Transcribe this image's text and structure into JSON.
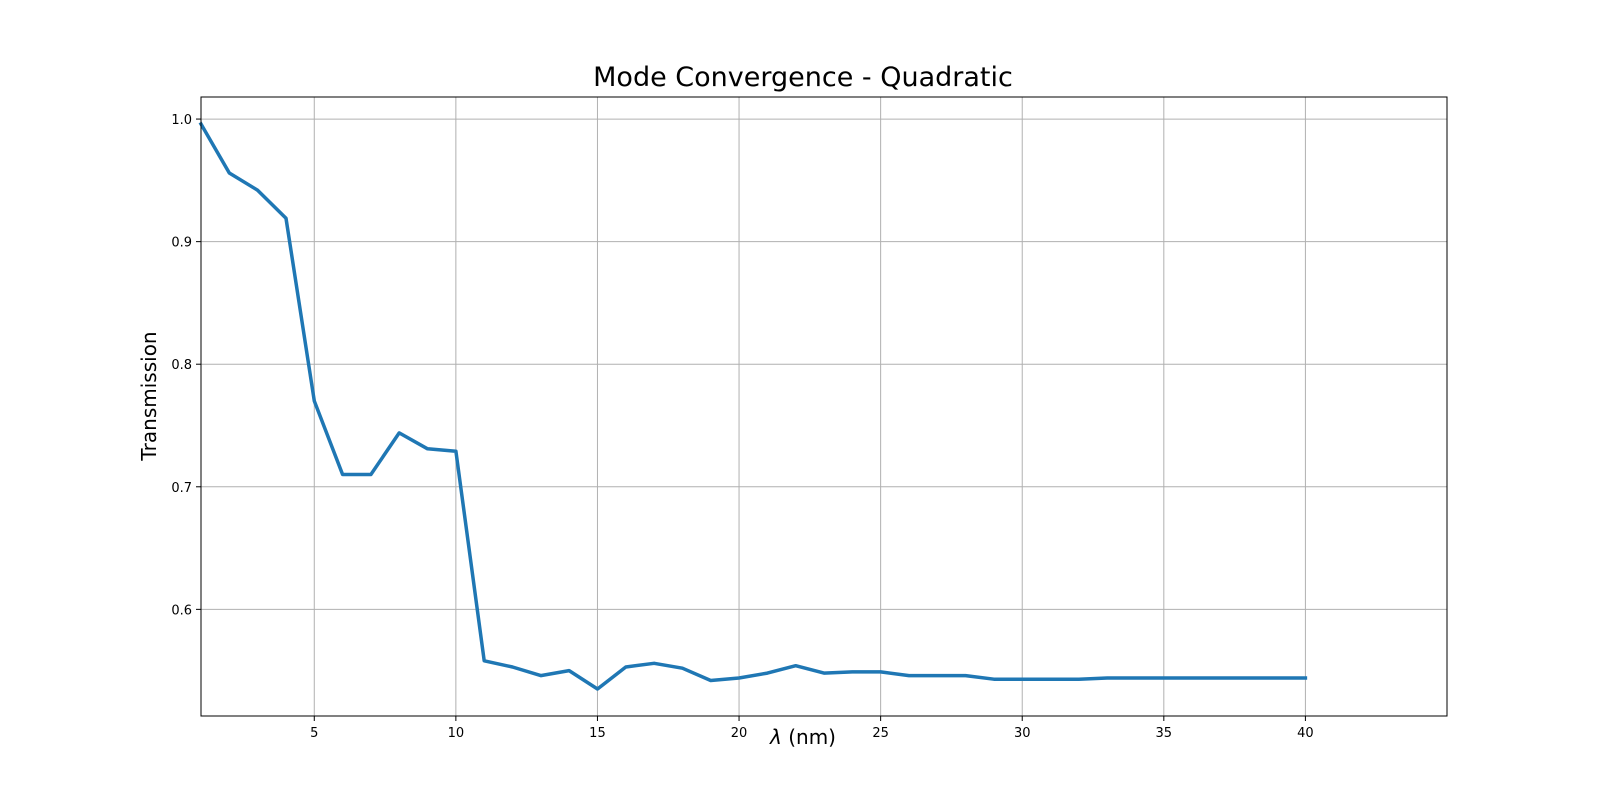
{
  "chart_data": {
    "type": "line",
    "title": "Mode Convergence - Quadratic",
    "xlabel_symbol": "λ",
    "xlabel_unit": " (nm)",
    "ylabel": "Transmission",
    "xlim": [
      1,
      45
    ],
    "ylim": [
      0.513,
      1.018
    ],
    "xticks": [
      5,
      10,
      15,
      20,
      25,
      30,
      35,
      40
    ],
    "yticks": [
      0.6,
      0.7,
      0.8,
      0.9,
      1.0
    ],
    "grid": true,
    "series": [
      {
        "color": "#1f77b4",
        "x": [
          1,
          2,
          3,
          4,
          5,
          6,
          7,
          8,
          9,
          10,
          11,
          12,
          13,
          14,
          15,
          16,
          17,
          18,
          19,
          20,
          21,
          22,
          23,
          24,
          25,
          26,
          27,
          28,
          29,
          30,
          31,
          32,
          33,
          34,
          35,
          36,
          37,
          38,
          39,
          40
        ],
        "y": [
          0.996,
          0.956,
          0.942,
          0.919,
          0.77,
          0.71,
          0.71,
          0.744,
          0.731,
          0.729,
          0.558,
          0.553,
          0.546,
          0.55,
          0.535,
          0.553,
          0.556,
          0.552,
          0.542,
          0.544,
          0.548,
          0.554,
          0.548,
          0.549,
          0.549,
          0.546,
          0.546,
          0.546,
          0.543,
          0.543,
          0.543,
          0.543,
          0.544,
          0.544,
          0.544,
          0.544,
          0.544,
          0.544,
          0.544,
          0.544
        ]
      }
    ]
  }
}
